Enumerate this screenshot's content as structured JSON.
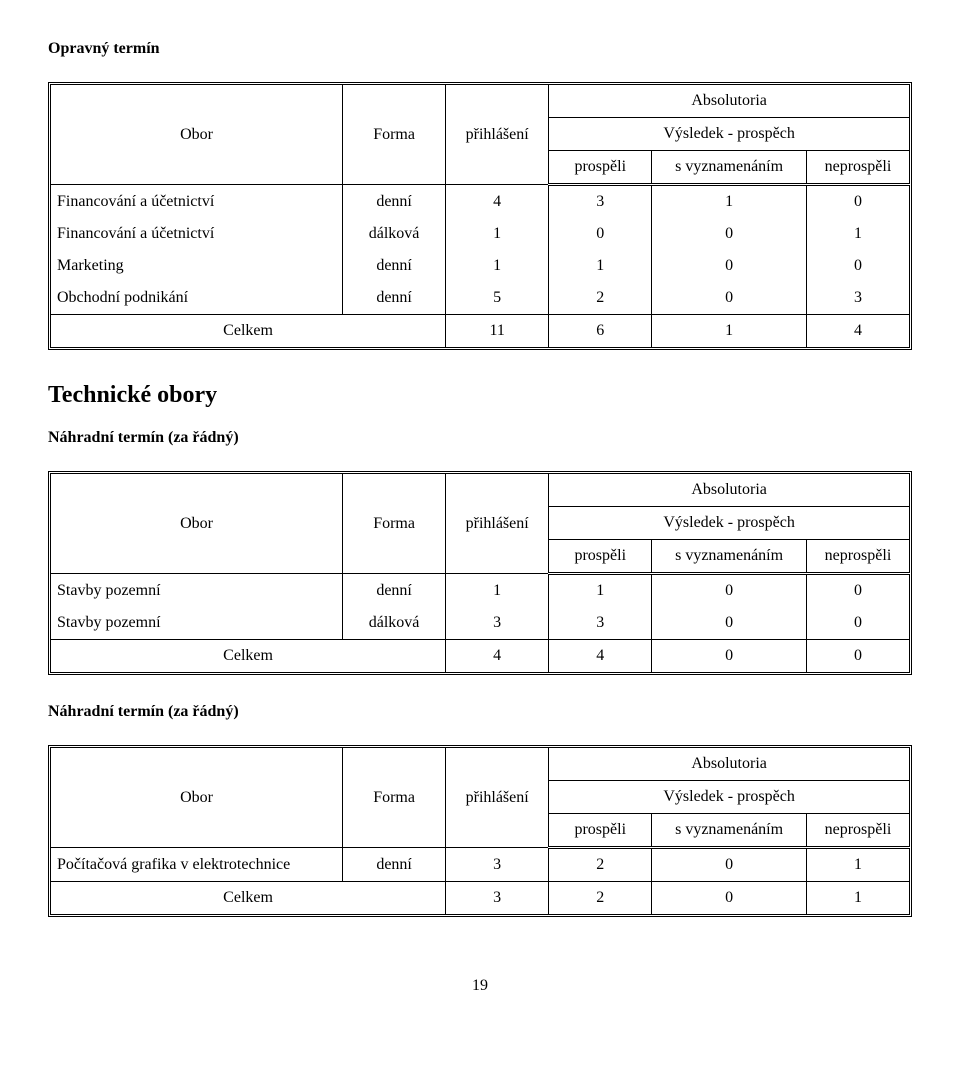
{
  "sections": {
    "s1_title": "Opravný termín",
    "s2_title": "Technické obory",
    "s3_title": "Náhradní termín (za řádný)",
    "s4_title": "Náhradní termín (za řádný)"
  },
  "header": {
    "obor": "Obor",
    "forma": "Forma",
    "abs": "Absolutoria",
    "vysledek": "Výsledek - prospěch",
    "prihlaseni": "přihlášení",
    "prospeli": "prospěli",
    "svyz": "s vyznamenáním",
    "neprospeli": "neprospěli",
    "celkem": "Celkem"
  },
  "table1": {
    "rows": [
      {
        "obor": "Financování a účetnictví",
        "forma": "denní",
        "pri": "4",
        "p1": "3",
        "p2": "1",
        "p3": "0"
      },
      {
        "obor": "Financování a účetnictví",
        "forma": "dálková",
        "pri": "1",
        "p1": "0",
        "p2": "0",
        "p3": "1"
      },
      {
        "obor": "Marketing",
        "forma": "denní",
        "pri": "1",
        "p1": "1",
        "p2": "0",
        "p3": "0"
      },
      {
        "obor": "Obchodní podnikání",
        "forma": "denní",
        "pri": "5",
        "p1": "2",
        "p2": "0",
        "p3": "3"
      }
    ],
    "totals": {
      "pri": "11",
      "p1": "6",
      "p2": "1",
      "p3": "4"
    }
  },
  "table2": {
    "rows": [
      {
        "obor": "Stavby pozemní",
        "forma": "denní",
        "pri": "1",
        "p1": "1",
        "p2": "0",
        "p3": "0"
      },
      {
        "obor": "Stavby pozemní",
        "forma": "dálková",
        "pri": "3",
        "p1": "3",
        "p2": "0",
        "p3": "0"
      }
    ],
    "totals": {
      "pri": "4",
      "p1": "4",
      "p2": "0",
      "p3": "0"
    }
  },
  "table3": {
    "rows": [
      {
        "obor": "Počítačová grafika v elektrotechnice",
        "forma": "denní",
        "pri": "3",
        "p1": "2",
        "p2": "0",
        "p3": "1"
      }
    ],
    "totals": {
      "pri": "3",
      "p1": "2",
      "p2": "0",
      "p3": "1"
    }
  },
  "page_number": "19"
}
